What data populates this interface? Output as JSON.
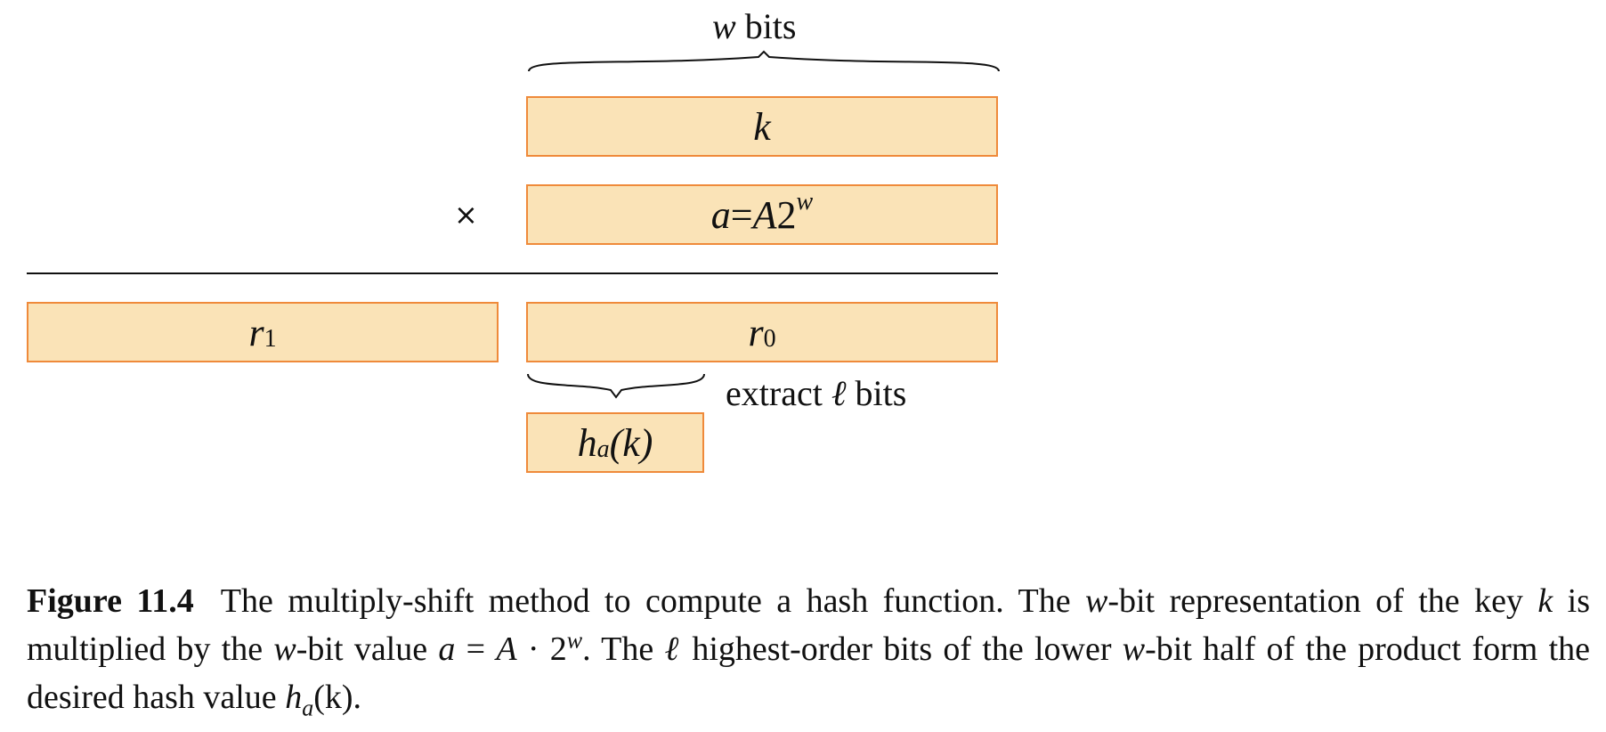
{
  "diagram": {
    "w_bits_var": "w",
    "w_bits_text": " bits",
    "k_label": "k",
    "times_symbol": "×",
    "a_lhs": "a",
    "a_eq": " = ",
    "a_A": "A",
    "a_two": " 2",
    "a_sup": "w",
    "r1_base": "r",
    "r1_sub": "1",
    "r0_base": "r",
    "r0_sub": "0",
    "extract_text": "extract ",
    "extract_ell": "ℓ",
    "extract_bits": " bits",
    "h_base": "h",
    "h_sub": "a",
    "h_arg": "(k)"
  },
  "caption": {
    "figure_label": "Figure 11.4",
    "t1": "The multiply-shift method to compute a hash function. The ",
    "w1": "w",
    "t2": "-bit representation of the key ",
    "k": "k",
    "t3": " is multiplied by the ",
    "w2": "w",
    "t4": "-bit value ",
    "a": "a",
    "t5": " = ",
    "A": "A",
    "t6": " · 2",
    "sup_w": "w",
    "t7": ". The ",
    "ell": "ℓ",
    "t8": " highest-order bits of the lower ",
    "w3": "w",
    "t9": "-bit half of the product form the desired hash value ",
    "h": "h",
    "h_sub": "a",
    "t10": "(k)."
  }
}
